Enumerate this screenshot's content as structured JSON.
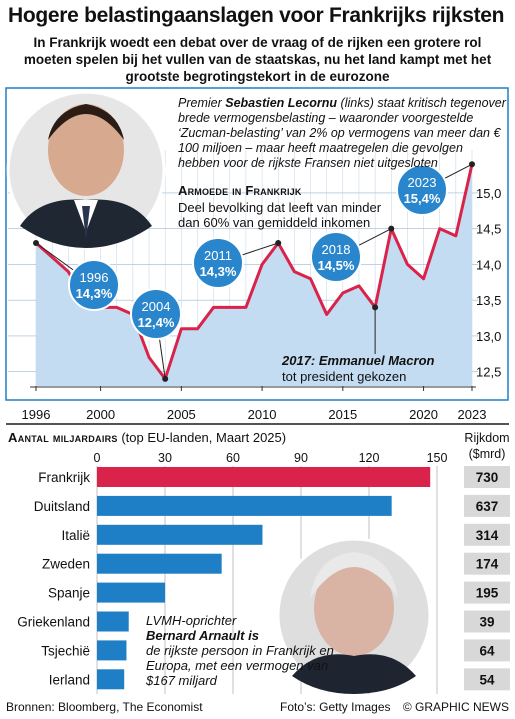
{
  "title": "Hogere belastingaanslagen voor Frankrijks rijksten",
  "standfirst": "In Frankrijk woedt een debat over de vraag of de rijken een grotere rol moeten spelen bij het vullen van de staatskas, nu het land kampt met het grootste begrotingstekort in de eurozone",
  "top_note": {
    "prefix": "Premier ",
    "name": "Sebastien Lecornu",
    "rest": " (links) staat kritisch tegenover brede vermogensbelasting – waaronder voorgestelde ‘Zucman-belasting’ van 2% op vermogens van meer dan € 100 miljoen – maar heeft maatregelen die gevolgen hebben voor de rijkste Fransen niet uitgesloten"
  },
  "poverty": {
    "title": "Armoede in Frankrijk",
    "desc": "Deel bevolking dat leeft van minder dan 60% van gemiddeld inkomen"
  },
  "macron_note": {
    "year": "2017:",
    "name": " Emmanuel Macron",
    "rest": "tot president gekozen"
  },
  "billionaires": {
    "header_bold": "Aantal miljardairs",
    "header_rest": " (top EU-landen, Maart 2025)",
    "wealth_head_1": "Rijkdom",
    "wealth_head_2": "($mrd)"
  },
  "arnault_note": {
    "line1": "LVMH-oprichter",
    "name": "Bernard Arnault",
    "verb": " is",
    "rest": "de rijkste persoon in Frankrijk en Europa, met een vermogen van $167 miljard"
  },
  "footer": {
    "sources": "Bronnen: Bloomberg, The Economist",
    "photos": "Foto’s: Getty Images",
    "copyright": "© GRAPHIC NEWS"
  },
  "watermark": "GRAPHIC NEWS",
  "colors": {
    "accent": "#d9234a",
    "blue": "#1e7fc6",
    "panel": "#c3dcf1",
    "callout": "#2a86cc"
  },
  "chart_data": [
    {
      "type": "line",
      "title": "Armoede in Frankrijk",
      "ylabel": "",
      "xlabel": "",
      "x": [
        1996,
        1997,
        1998,
        1999,
        2000,
        2001,
        2002,
        2003,
        2004,
        2005,
        2006,
        2007,
        2008,
        2009,
        2010,
        2011,
        2012,
        2013,
        2014,
        2015,
        2016,
        2017,
        2018,
        2019,
        2020,
        2021,
        2022,
        2023
      ],
      "values": [
        14.3,
        14.1,
        13.9,
        13.5,
        13.4,
        13.4,
        13.3,
        12.7,
        12.4,
        13.1,
        13.1,
        13.4,
        13.4,
        13.4,
        14.0,
        14.3,
        13.9,
        13.8,
        13.3,
        13.6,
        13.7,
        13.4,
        14.5,
        14.0,
        13.8,
        14.5,
        14.4,
        15.4
      ],
      "x_ticks": [
        "1996",
        "2000",
        "2005",
        "2010",
        "2015",
        "2020",
        "2023"
      ],
      "y_ticks": [
        "12,5",
        "13,0",
        "13,5",
        "14,0",
        "14,5",
        "15,0"
      ],
      "ylim": [
        12.3,
        15.6
      ],
      "callouts": [
        {
          "year": "1996",
          "value": "14,3%"
        },
        {
          "year": "2004",
          "value": "12,4%"
        },
        {
          "year": "2011",
          "value": "14,3%"
        },
        {
          "year": "2018",
          "value": "14,5%"
        },
        {
          "year": "2023",
          "value": "15,4%"
        }
      ],
      "annotation": "2017: Emmanuel Macron tot president gekozen",
      "grid": true
    },
    {
      "type": "bar",
      "title": "Aantal miljardairs (top EU-landen, Maart 2025)",
      "categories": [
        "Frankrijk",
        "Duitsland",
        "Italië",
        "Zweden",
        "Spanje",
        "Griekenland",
        "Tsjechië",
        "Ierland"
      ],
      "values": [
        147,
        130,
        73,
        55,
        30,
        14,
        13,
        12
      ],
      "wealth": [
        "730",
        "637",
        "314",
        "174",
        "195",
        "39",
        "64",
        "54"
      ],
      "x_ticks": [
        "0",
        "30",
        "60",
        "90",
        "120",
        "150"
      ],
      "xlim": [
        0,
        150
      ],
      "highlight": "Frankrijk"
    }
  ]
}
